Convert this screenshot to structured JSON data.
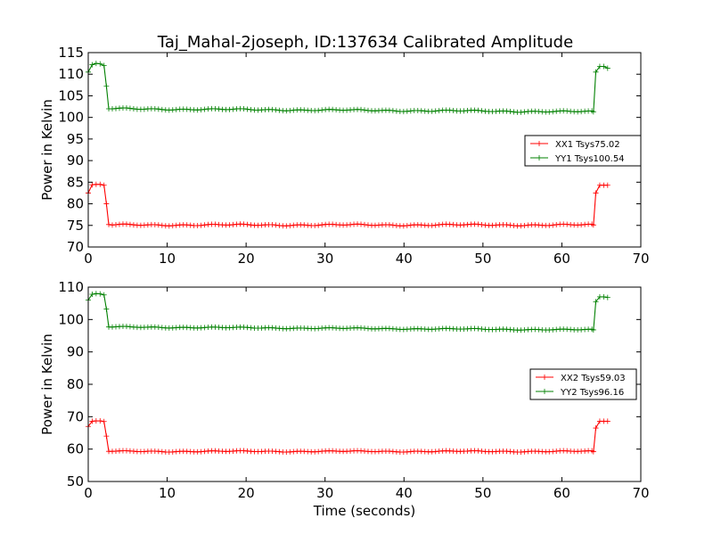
{
  "figure": {
    "title": "Taj_Mahal-2joseph, ID:137634 Calibrated Amplitude"
  },
  "chart_data": [
    {
      "type": "line",
      "title": "Taj_Mahal-2joseph, ID:137634 Calibrated Amplitude",
      "xlabel": "",
      "ylabel": "Power in Kelvin",
      "xlim": [
        0,
        70
      ],
      "ylim": [
        70,
        115
      ],
      "xticks": [
        0,
        10,
        20,
        30,
        40,
        50,
        60,
        70
      ],
      "yticks": [
        70,
        75,
        80,
        85,
        90,
        95,
        100,
        105,
        110,
        115
      ],
      "grid": false,
      "legend_position": "right",
      "series": [
        {
          "name": "XX1 Tsys75.02",
          "color": "#ff0000",
          "marker": "+",
          "x": [
            0,
            0.5,
            1,
            1.5,
            2,
            2.3,
            2.6,
            64,
            64.3,
            64.8,
            65.3,
            65.8
          ],
          "y": [
            82.5,
            84.4,
            84.5,
            84.5,
            84.3,
            80.0,
            75.2,
            75.1,
            82.5,
            84.3,
            84.3,
            84.3
          ],
          "flat_span": [
            2.6,
            64
          ],
          "flat_value": 75.1
        },
        {
          "name": "YY1 Tsys100.54",
          "color": "#008000",
          "marker": "+",
          "x": [
            0,
            0.5,
            1,
            1.5,
            2,
            2.3,
            2.6,
            64,
            64.3,
            64.8,
            65.3,
            65.8
          ],
          "y": [
            110.5,
            112.2,
            112.5,
            112.4,
            112.0,
            107.2,
            102.0,
            101.3,
            110.5,
            111.8,
            111.8,
            111.4
          ],
          "flat_span": [
            2.6,
            64
          ],
          "flat_start": 102.0,
          "flat_end": 101.3
        }
      ]
    },
    {
      "type": "line",
      "title": "",
      "xlabel": "Time (seconds)",
      "ylabel": "Power in Kelvin",
      "xlim": [
        0,
        70
      ],
      "ylim": [
        50,
        110
      ],
      "xticks": [
        0,
        10,
        20,
        30,
        40,
        50,
        60,
        70
      ],
      "yticks": [
        50,
        60,
        70,
        80,
        90,
        100,
        110
      ],
      "grid": false,
      "legend_position": "right",
      "series": [
        {
          "name": "XX2 Tsys59.03",
          "color": "#ff0000",
          "marker": "+",
          "x": [
            0,
            0.5,
            1,
            1.5,
            2,
            2.3,
            2.6,
            64,
            64.3,
            64.8,
            65.3,
            65.8
          ],
          "y": [
            67.0,
            68.6,
            68.7,
            68.7,
            68.5,
            64.0,
            59.3,
            59.2,
            66.5,
            68.6,
            68.6,
            68.6
          ],
          "flat_span": [
            2.6,
            64
          ],
          "flat_value": 59.3
        },
        {
          "name": "YY2 Tsys96.16",
          "color": "#008000",
          "marker": "+",
          "x": [
            0,
            0.5,
            1,
            1.5,
            2,
            2.3,
            2.6,
            64,
            64.3,
            64.8,
            65.3,
            65.8
          ],
          "y": [
            106.0,
            107.8,
            108.0,
            107.9,
            107.6,
            103.2,
            97.7,
            96.8,
            105.5,
            107.0,
            107.0,
            106.8
          ],
          "flat_span": [
            2.6,
            64
          ],
          "flat_start": 97.7,
          "flat_end": 96.8
        }
      ]
    }
  ]
}
